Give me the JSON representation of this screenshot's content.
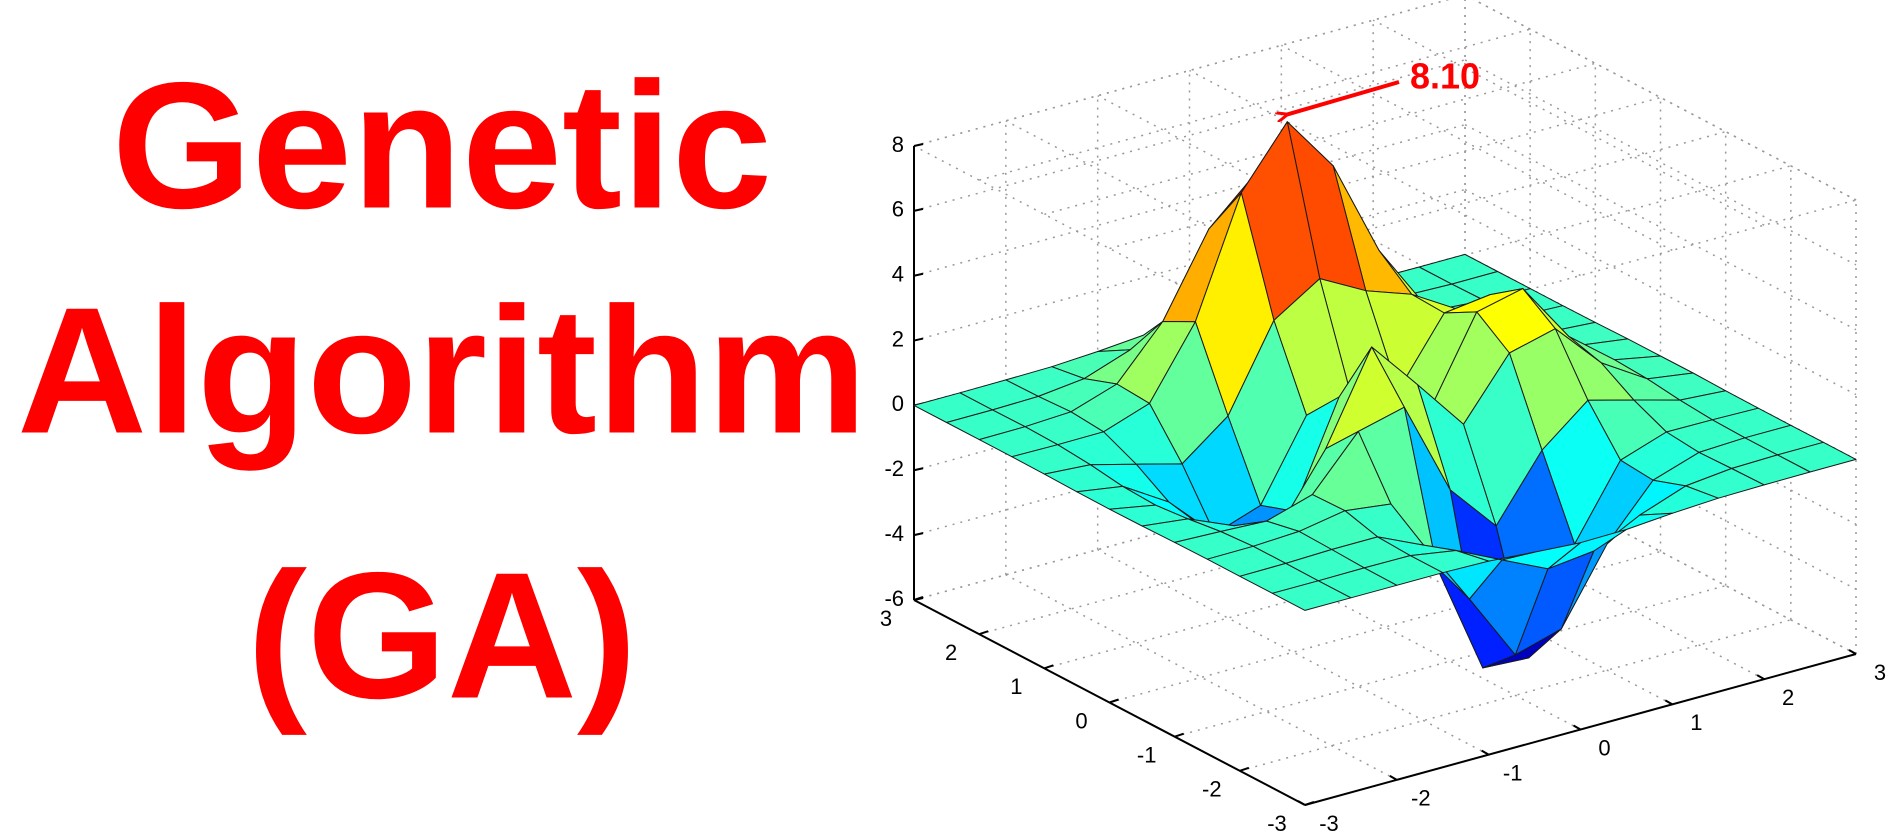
{
  "chart_data": {
    "type": "surface",
    "title": [
      "Genetic",
      "Algorithm",
      "(GA)"
    ],
    "x": [
      -3,
      -2.5,
      -2,
      -1.5,
      -1,
      -0.5,
      0,
      0.5,
      1,
      1.5,
      2,
      2.5,
      3
    ],
    "y": [
      -3,
      -2.5,
      -2,
      -1.5,
      -1,
      -0.5,
      0,
      0.5,
      1,
      1.5,
      2,
      2.5,
      3
    ],
    "z": [
      [
        0,
        0,
        0,
        0,
        -0.03,
        -0.14,
        -0.24,
        -0.22,
        -0.11,
        -0.03,
        -0.01,
        0,
        0
      ],
      [
        0,
        0,
        0.01,
        0,
        -0.23,
        -0.91,
        -1.57,
        -1.41,
        -0.69,
        -0.18,
        -0.03,
        0,
        0
      ],
      [
        0,
        0.01,
        0.05,
        0.05,
        -0.59,
        -2.64,
        -4.75,
        -4.34,
        -2.1,
        -0.53,
        -0.06,
        0,
        0
      ],
      [
        0,
        0.01,
        0.08,
        0.33,
        0.15,
        -2.19,
        -5.68,
        -5.76,
        -2.64,
        -0.44,
        0.04,
        0.03,
        0
      ],
      [
        -0.01,
        -0.06,
        -0.13,
        0.3,
        1.86,
        2.22,
        -0.72,
        -2.22,
        -0.27,
        0.88,
        0.5,
        0.11,
        0.01
      ],
      [
        -0.03,
        -0.2,
        -0.8,
        -1.21,
        0.8,
        3.55,
        2,
        0.39,
        2.2,
        2.56,
        1.12,
        0.24,
        0.03
      ],
      [
        -0.04,
        -0.3,
        -1.33,
        -2.77,
        -1.65,
        1.48,
        0.98,
        0.37,
        2.94,
        3.27,
        1.41,
        0.3,
        0.03
      ],
      [
        -0.03,
        -0.25,
        -1.12,
        -2.49,
        -2,
        0.39,
        0.46,
        0.38,
        2.38,
        2.56,
        1.09,
        0.23,
        0.03
      ],
      [
        -0.01,
        -0.11,
        -0.48,
        -0.86,
        0.23,
        2.79,
        3.69,
        2.93,
        2.43,
        1.58,
        0.58,
        0.11,
        0.01
      ],
      [
        0,
        -0.02,
        -0.01,
        0.48,
        2.61,
        6.2,
        8,
        6.25,
        3.25,
        1.19,
        0.29,
        0.05,
        0
      ],
      [
        0,
        0.01,
        0.08,
        0.55,
        2.09,
        4.55,
        5.85,
        4.56,
        2.21,
        0.68,
        0.13,
        0.02,
        0
      ],
      [
        0,
        0,
        0.03,
        0.19,
        0.69,
        1.47,
        1.88,
        1.47,
        0.7,
        0.2,
        0.04,
        0,
        0
      ],
      [
        0,
        0,
        0.01,
        0.03,
        0.11,
        0.23,
        0.3,
        0.23,
        0.11,
        0.03,
        0.01,
        0,
        0
      ]
    ],
    "xlim": [
      -3,
      3
    ],
    "ylim": [
      -3,
      3
    ],
    "zlim": [
      -6,
      8
    ],
    "xticks": [
      -3,
      -2,
      -1,
      0,
      1,
      2,
      3
    ],
    "yticks": [
      -3,
      -2,
      -1,
      0,
      1,
      2,
      3
    ],
    "zticks": [
      -6,
      -4,
      -2,
      0,
      2,
      4,
      6,
      8
    ],
    "colormap": "jet",
    "grid": true,
    "annotation": {
      "label": "8.10",
      "x": 0,
      "y": 1.58,
      "z": 8.1,
      "color": "#ff0000"
    },
    "title_color": "#ff0000"
  }
}
